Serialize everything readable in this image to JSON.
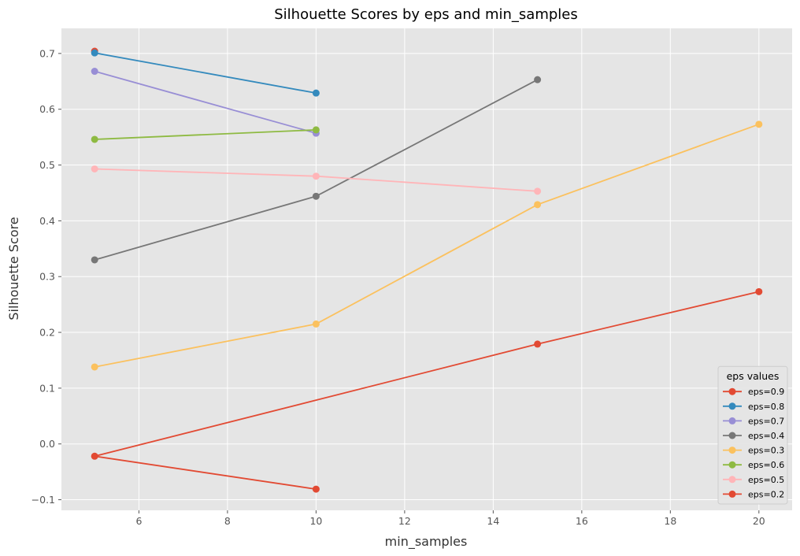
{
  "chart_data": {
    "type": "line",
    "title": "Silhouette Scores by eps and min_samples",
    "xlabel": "min_samples",
    "ylabel": "Silhouette Score",
    "xlim": [
      4.25,
      20.75
    ],
    "ylim": [
      -0.119,
      0.745
    ],
    "xticks": [
      6,
      8,
      10,
      12,
      14,
      16,
      18,
      20
    ],
    "yticks": [
      -0.1,
      0.0,
      0.1,
      0.2,
      0.3,
      0.4,
      0.5,
      0.6,
      0.7
    ],
    "ytick_labels": [
      "−0.1",
      "0.0",
      "0.1",
      "0.2",
      "0.3",
      "0.4",
      "0.5",
      "0.6",
      "0.7"
    ],
    "grid": true,
    "background": "#e5e5e5",
    "legend": {
      "title": "eps values",
      "placement": "bottom-right"
    },
    "series": [
      {
        "name": "eps=0.9",
        "color": "#e24a33",
        "points": [
          [
            5,
            0.704
          ]
        ]
      },
      {
        "name": "eps=0.8",
        "color": "#348abd",
        "points": [
          [
            5,
            0.701
          ],
          [
            10,
            0.629
          ]
        ]
      },
      {
        "name": "eps=0.7",
        "color": "#988ed5",
        "points": [
          [
            5,
            0.668
          ],
          [
            10,
            0.557
          ]
        ]
      },
      {
        "name": "eps=0.4",
        "color": "#777777",
        "points": [
          [
            5,
            0.33
          ],
          [
            10,
            0.444
          ],
          [
            15,
            0.653
          ]
        ]
      },
      {
        "name": "eps=0.3",
        "color": "#fbc15e",
        "points": [
          [
            5,
            0.138
          ],
          [
            10,
            0.215
          ],
          [
            15,
            0.429
          ],
          [
            20,
            0.573
          ]
        ]
      },
      {
        "name": "eps=0.6",
        "color": "#8eba42",
        "points": [
          [
            5,
            0.546
          ],
          [
            10,
            0.563
          ]
        ]
      },
      {
        "name": "eps=0.5",
        "color": "#ffb5b8",
        "points": [
          [
            5,
            0.493
          ],
          [
            10,
            0.48
          ],
          [
            15,
            0.453
          ]
        ]
      },
      {
        "name": "eps=0.2",
        "color": "#e24a33",
        "points": [
          [
            10,
            -0.081
          ],
          [
            5,
            -0.022
          ],
          [
            15,
            0.179
          ],
          [
            20,
            0.273
          ]
        ]
      }
    ]
  }
}
